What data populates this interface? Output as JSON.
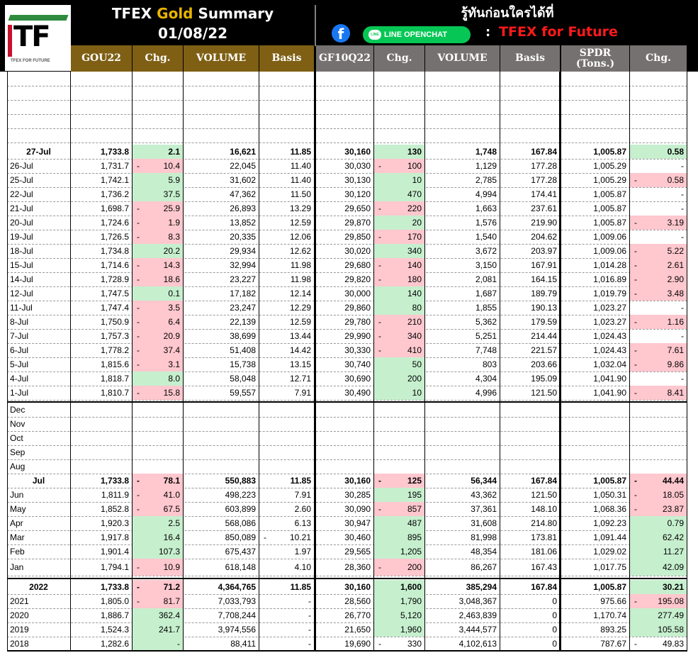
{
  "header": {
    "title_prefix": "TFEX ",
    "title_gold": "Gold",
    "title_suffix": " Summary",
    "date": "01/08/22",
    "tagline": "รู้ทันก่อนใครได้ที่",
    "fb_glyph": "f",
    "line_label": "LINE OPENCHAT",
    "line_glyph": "LINE",
    "colon": ":",
    "group_name": "TFEX for Future",
    "logo_text": "TF",
    "logo_sub": "TFEX FOR FUTURE"
  },
  "colors": {
    "gold_header": "#7f5f14",
    "gray_header": "#767171",
    "positive": "#c6efce",
    "negative": "#ffc7ce",
    "brand_red": "#ff1a1a",
    "gold_text": "#e8b400"
  },
  "columns": [
    "GOU22",
    "Chg.",
    "VOLUME",
    "Basis",
    "GF10Q22",
    "Chg.",
    "VOLUME",
    "Basis",
    "SPDR (Tons.)",
    "Chg."
  ],
  "daily_rows": [
    {
      "label": "27-Jul",
      "gou": "1,733.8",
      "gou_chg": "2.1",
      "gou_vol": "16,621",
      "gou_basis": "11.85",
      "gf": "30,160",
      "gf_chg": "130",
      "gf_vol": "1,748",
      "gf_basis": "167.84",
      "spdr": "1,005.87",
      "spdr_chg": "0.58",
      "s1": "pos",
      "s2": "pos",
      "s3": "pos",
      "bold": true
    },
    {
      "label": "26-Jul",
      "gou": "1,731.7",
      "gou_chg": "10.4",
      "gou_vol": "22,045",
      "gou_basis": "11.40",
      "gf": "30,030",
      "gf_chg": "100",
      "gf_vol": "1,129",
      "gf_basis": "177.28",
      "spdr": "1,005.29",
      "spdr_chg": "-",
      "s1": "neg",
      "s2": "neg",
      "s3": "none"
    },
    {
      "label": "25-Jul",
      "gou": "1,742.1",
      "gou_chg": "5.9",
      "gou_vol": "31,602",
      "gou_basis": "11.40",
      "gf": "30,130",
      "gf_chg": "10",
      "gf_vol": "2,785",
      "gf_basis": "177.28",
      "spdr": "1,005.29",
      "spdr_chg": "0.58",
      "s1": "pos",
      "s2": "pos",
      "s3": "neg"
    },
    {
      "label": "22-Jul",
      "gou": "1,736.2",
      "gou_chg": "37.5",
      "gou_vol": "47,362",
      "gou_basis": "11.50",
      "gf": "30,120",
      "gf_chg": "470",
      "gf_vol": "4,994",
      "gf_basis": "174.41",
      "spdr": "1,005.87",
      "spdr_chg": "-",
      "s1": "pos",
      "s2": "pos",
      "s3": "none"
    },
    {
      "label": "21-Jul",
      "gou": "1,698.7",
      "gou_chg": "25.9",
      "gou_vol": "26,893",
      "gou_basis": "13.29",
      "gf": "29,650",
      "gf_chg": "220",
      "gf_vol": "1,663",
      "gf_basis": "237.61",
      "spdr": "1,005.87",
      "spdr_chg": "-",
      "s1": "neg",
      "s2": "neg",
      "s3": "none"
    },
    {
      "label": "20-Jul",
      "gou": "1,724.6",
      "gou_chg": "1.9",
      "gou_vol": "13,852",
      "gou_basis": "12.59",
      "gf": "29,870",
      "gf_chg": "20",
      "gf_vol": "1,576",
      "gf_basis": "219.90",
      "spdr": "1,005.87",
      "spdr_chg": "3.19",
      "s1": "neg",
      "s2": "pos",
      "s3": "neg"
    },
    {
      "label": "19-Jul",
      "gou": "1,726.5",
      "gou_chg": "8.3",
      "gou_vol": "20,335",
      "gou_basis": "12.06",
      "gf": "29,850",
      "gf_chg": "170",
      "gf_vol": "1,540",
      "gf_basis": "204.62",
      "spdr": "1,009.06",
      "spdr_chg": "-",
      "s1": "neg",
      "s2": "neg",
      "s3": "none"
    },
    {
      "label": "18-Jul",
      "gou": "1,734.8",
      "gou_chg": "20.2",
      "gou_vol": "29,934",
      "gou_basis": "12.62",
      "gf": "30,020",
      "gf_chg": "340",
      "gf_vol": "3,672",
      "gf_basis": "203.97",
      "spdr": "1,009.06",
      "spdr_chg": "5.22",
      "s1": "pos",
      "s2": "pos",
      "s3": "neg"
    },
    {
      "label": "15-Jul",
      "gou": "1,714.6",
      "gou_chg": "14.3",
      "gou_vol": "32,994",
      "gou_basis": "11.98",
      "gf": "29,680",
      "gf_chg": "140",
      "gf_vol": "3,150",
      "gf_basis": "167.91",
      "spdr": "1,014.28",
      "spdr_chg": "2.61",
      "s1": "neg",
      "s2": "neg",
      "s3": "neg"
    },
    {
      "label": "14-Jul",
      "gou": "1,728.9",
      "gou_chg": "18.6",
      "gou_vol": "23,227",
      "gou_basis": "11.98",
      "gf": "29,820",
      "gf_chg": "180",
      "gf_vol": "2,081",
      "gf_basis": "164.15",
      "spdr": "1,016.89",
      "spdr_chg": "2.90",
      "s1": "neg",
      "s2": "neg",
      "s3": "neg"
    },
    {
      "label": "12-Jul",
      "gou": "1,747.5",
      "gou_chg": "0.1",
      "gou_vol": "17,182",
      "gou_basis": "12.14",
      "gf": "30,000",
      "gf_chg": "140",
      "gf_vol": "1,687",
      "gf_basis": "189.79",
      "spdr": "1,019.79",
      "spdr_chg": "3.48",
      "s1": "pos",
      "s2": "pos",
      "s3": "neg"
    },
    {
      "label": "11-Jul",
      "gou": "1,747.4",
      "gou_chg": "3.5",
      "gou_vol": "23,247",
      "gou_basis": "12.29",
      "gf": "29,860",
      "gf_chg": "80",
      "gf_vol": "1,855",
      "gf_basis": "190.13",
      "spdr": "1,023.27",
      "spdr_chg": "-",
      "s1": "neg",
      "s2": "pos",
      "s3": "none"
    },
    {
      "label": "8-Jul",
      "gou": "1,750.9",
      "gou_chg": "6.4",
      "gou_vol": "22,139",
      "gou_basis": "12.59",
      "gf": "29,780",
      "gf_chg": "210",
      "gf_vol": "5,362",
      "gf_basis": "179.59",
      "spdr": "1,023.27",
      "spdr_chg": "1.16",
      "s1": "neg",
      "s2": "neg",
      "s3": "neg"
    },
    {
      "label": "7-Jul",
      "gou": "1,757.3",
      "gou_chg": "20.9",
      "gou_vol": "38,699",
      "gou_basis": "13.44",
      "gf": "29,990",
      "gf_chg": "340",
      "gf_vol": "5,251",
      "gf_basis": "214.44",
      "spdr": "1,024.43",
      "spdr_chg": "-",
      "s1": "neg",
      "s2": "neg",
      "s3": "none"
    },
    {
      "label": "6-Jul",
      "gou": "1,778.2",
      "gou_chg": "37.4",
      "gou_vol": "51,408",
      "gou_basis": "14.42",
      "gf": "30,330",
      "gf_chg": "410",
      "gf_vol": "7,748",
      "gf_basis": "221.57",
      "spdr": "1,024.43",
      "spdr_chg": "7.61",
      "s1": "neg",
      "s2": "neg",
      "s3": "neg"
    },
    {
      "label": "5-Jul",
      "gou": "1,815.6",
      "gou_chg": "3.1",
      "gou_vol": "15,738",
      "gou_basis": "13.15",
      "gf": "30,740",
      "gf_chg": "50",
      "gf_vol": "803",
      "gf_basis": "203.66",
      "spdr": "1,032.04",
      "spdr_chg": "9.86",
      "s1": "neg",
      "s2": "pos",
      "s3": "neg"
    },
    {
      "label": "4-Jul",
      "gou": "1,818.7",
      "gou_chg": "8.0",
      "gou_vol": "58,048",
      "gou_basis": "12.71",
      "gf": "30,690",
      "gf_chg": "200",
      "gf_vol": "4,304",
      "gf_basis": "195.09",
      "spdr": "1,041.90",
      "spdr_chg": "-",
      "s1": "pos",
      "s2": "pos",
      "s3": "none"
    },
    {
      "label": "1-Jul",
      "gou": "1,810.7",
      "gou_chg": "15.8",
      "gou_vol": "59,557",
      "gou_basis": "7.91",
      "gf": "30,490",
      "gf_chg": "10",
      "gf_vol": "4,996",
      "gf_basis": "121.50",
      "spdr": "1,041.90",
      "spdr_chg": "8.41",
      "s1": "neg",
      "s2": "pos",
      "s3": "neg"
    }
  ],
  "monthly_rows": [
    {
      "label": "Dec",
      "empty": true
    },
    {
      "label": "Nov",
      "empty": true
    },
    {
      "label": "Oct",
      "empty": true
    },
    {
      "label": "Sep",
      "empty": true
    },
    {
      "label": "Aug",
      "empty": true
    },
    {
      "label": "Jul",
      "gou": "1,733.8",
      "gou_chg": "78.1",
      "gou_vol": "550,883",
      "gou_basis": "11.85",
      "gf": "30,160",
      "gf_chg": "125",
      "gf_vol": "56,344",
      "gf_basis": "167.84",
      "spdr": "1,005.87",
      "spdr_chg": "44.44",
      "s1": "neg",
      "s2": "neg",
      "s3": "neg",
      "bold": true
    },
    {
      "label": "Jun",
      "gou": "1,811.9",
      "gou_chg": "41.0",
      "gou_vol": "498,223",
      "gou_basis": "7.91",
      "gf": "30,285",
      "gf_chg": "195",
      "gf_vol": "43,362",
      "gf_basis": "121.50",
      "spdr": "1,050.31",
      "spdr_chg": "18.05",
      "s1": "neg",
      "s2": "pos",
      "s3": "neg"
    },
    {
      "label": "May",
      "gou": "1,852.8",
      "gou_chg": "67.5",
      "gou_vol": "603,899",
      "gou_basis": "2.60",
      "gf": "30,090",
      "gf_chg": "857",
      "gf_vol": "37,361",
      "gf_basis": "148.10",
      "spdr": "1,068.36",
      "spdr_chg": "23.87",
      "s1": "neg",
      "s2": "neg",
      "s3": "neg"
    },
    {
      "label": "Apr",
      "gou": "1,920.3",
      "gou_chg": "2.5",
      "gou_vol": "568,086",
      "gou_basis": "6.13",
      "gf": "30,947",
      "gf_chg": "487",
      "gf_vol": "31,608",
      "gf_basis": "214.80",
      "spdr": "1,092.23",
      "spdr_chg": "0.79",
      "s1": "pos",
      "s2": "pos",
      "s3": "pos"
    },
    {
      "label": "Mar",
      "gou": "1,917.8",
      "gou_chg": "16.4",
      "gou_vol": "850,089",
      "gou_basis": "10.21",
      "basis_neg": true,
      "gf": "30,460",
      "gf_chg": "895",
      "gf_vol": "81,998",
      "gf_basis": "173.81",
      "spdr": "1,091.44",
      "spdr_chg": "62.42",
      "s1": "pos",
      "s2": "pos",
      "s3": "pos"
    },
    {
      "label": "Feb",
      "gou": "1,901.4",
      "gou_chg": "107.3",
      "gou_vol": "675,437",
      "gou_basis": "1.97",
      "gf": "29,565",
      "gf_chg": "1,205",
      "gf_vol": "48,354",
      "gf_basis": "181.06",
      "spdr": "1,029.02",
      "spdr_chg": "11.27",
      "s1": "pos",
      "s2": "pos",
      "s3": "pos"
    },
    {
      "label": "Jan",
      "gou": "1,794.1",
      "gou_chg": "10.9",
      "gou_vol": "618,148",
      "gou_basis": "4.10",
      "gf": "28,360",
      "gf_chg": "200",
      "gf_vol": "86,267",
      "gf_basis": "167.43",
      "spdr": "1,017.75",
      "spdr_chg": "42.09",
      "s1": "neg",
      "s2": "neg",
      "s3": "pos"
    }
  ],
  "yearly_rows": [
    {
      "label": "2022",
      "gou": "1,733.8",
      "gou_chg": "71.2",
      "gou_vol": "4,364,765",
      "gou_basis": "11.85",
      "gf": "30,160",
      "gf_chg": "1,600",
      "gf_vol": "385,294",
      "gf_basis": "167.84",
      "spdr": "1,005.87",
      "spdr_chg": "30.21",
      "s1": "neg",
      "s2": "pos",
      "s3": "pos",
      "bold": true
    },
    {
      "label": "2021",
      "gou": "1,805.0",
      "gou_chg": "81.7",
      "gou_vol": "7,033,793",
      "gou_basis": "-",
      "gf": "28,560",
      "gf_chg": "1,790",
      "gf_vol": "3,048,367",
      "gf_basis": "0",
      "spdr": "975.66",
      "spdr_chg": "195.08",
      "s1": "neg",
      "s2": "pos",
      "s3": "neg"
    },
    {
      "label": "2020",
      "gou": "1,886.7",
      "gou_chg": "362.4",
      "gou_vol": "7,708,244",
      "gou_basis": "-",
      "gf": "26,770",
      "gf_chg": "5,120",
      "gf_vol": "2,463,839",
      "gf_basis": "0",
      "spdr": "1,170.74",
      "spdr_chg": "277.49",
      "s1": "pos",
      "s2": "pos",
      "s3": "pos"
    },
    {
      "label": "2019",
      "gou": "1,524.3",
      "gou_chg": "241.7",
      "gou_vol": "3,974,556",
      "gou_basis": "-",
      "gf": "21,650",
      "gf_chg": "1,960",
      "gf_vol": "3,444,577",
      "gf_basis": "0",
      "spdr": "893.25",
      "spdr_chg": "105.58",
      "s1": "pos",
      "s2": "pos",
      "s3": "pos"
    },
    {
      "label": "2018",
      "gou": "1,282.6",
      "gou_chg": "-",
      "gou_vol": "88,411",
      "gou_basis": "-",
      "gf": "19,690",
      "gf_chg": "330",
      "gf_vol": "4,102,613",
      "gf_basis": "0",
      "spdr": "787.67",
      "spdr_chg": "49.83",
      "s1": "pos",
      "s2": "none",
      "s3": "none",
      "m2": true,
      "m3": true
    }
  ]
}
